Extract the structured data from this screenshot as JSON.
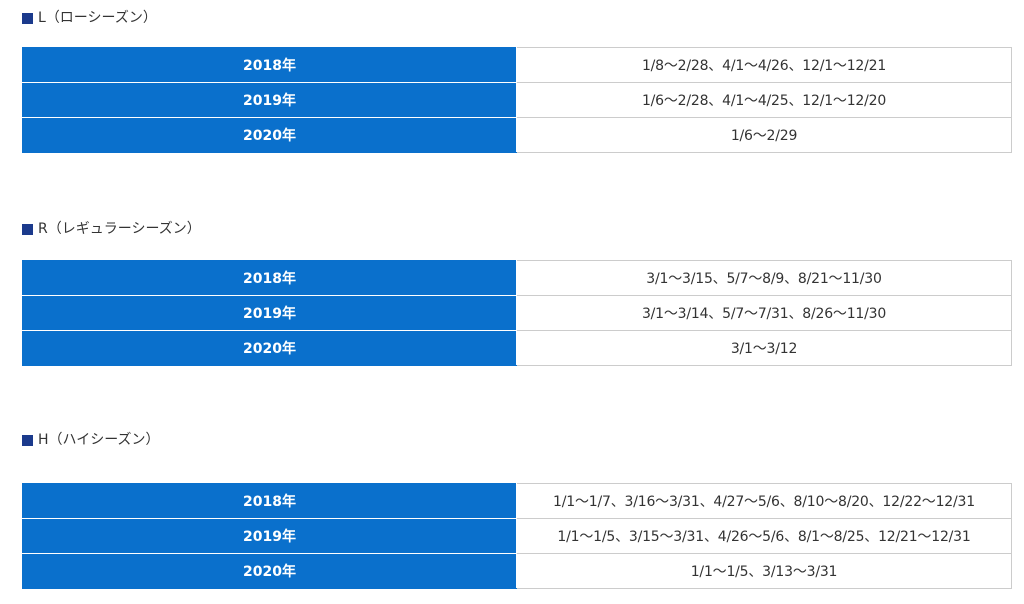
{
  "sections": [
    {
      "title": "L（ローシーズン）",
      "rows": [
        {
          "year": "2018年",
          "dates": "1/8～2/28、4/1～4/26、12/1～12/21"
        },
        {
          "year": "2019年",
          "dates": "1/6～2/28、4/1～4/25、12/1～12/20"
        },
        {
          "year": "2020年",
          "dates": "1/6～2/29"
        }
      ]
    },
    {
      "title": "R（レギュラーシーズン）",
      "rows": [
        {
          "year": "2018年",
          "dates": "3/1～3/15、5/7～8/9、8/21～11/30"
        },
        {
          "year": "2019年",
          "dates": "3/1～3/14、5/7～7/31、8/26～11/30"
        },
        {
          "year": "2020年",
          "dates": "3/1～3/12"
        }
      ]
    },
    {
      "title": "H（ハイシーズン）",
      "rows": [
        {
          "year": "2018年",
          "dates": "1/1～1/7、3/16～3/31、4/27～5/6、8/10～8/20、12/22～12/31"
        },
        {
          "year": "2019年",
          "dates": "1/1～1/5、3/15～3/31、4/26～5/6、8/1～8/25、12/21～12/31"
        },
        {
          "year": "2020年",
          "dates": "1/1～1/5、3/13～3/31"
        }
      ]
    }
  ],
  "colors": {
    "header_cell": "#0a70cc",
    "square_icon": "#1b3a8c"
  },
  "icons": {
    "section_marker": "square-icon"
  }
}
